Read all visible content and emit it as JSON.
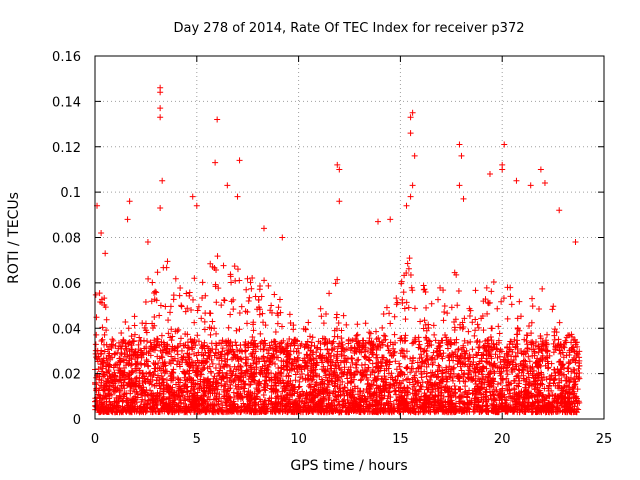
{
  "chart_data": {
    "type": "scatter",
    "title": "Day 278 of 2014, Rate Of TEC Index for receiver p372",
    "xlabel": "GPS time / hours",
    "ylabel": "ROTI / TECUs",
    "xlim": [
      0,
      25
    ],
    "ylim": [
      0,
      0.16
    ],
    "xticks": [
      0,
      5,
      10,
      15,
      20,
      25
    ],
    "xtick_labels": [
      "0",
      "5",
      "10",
      "15",
      "20",
      "25"
    ],
    "yticks": [
      0,
      0.02,
      0.04,
      0.06,
      0.08,
      0.1,
      0.12,
      0.14,
      0.16
    ],
    "ytick_labels": [
      "0",
      "0.02",
      "0.04",
      "0.06",
      "0.08",
      "0.1",
      "0.12",
      "0.14",
      "0.16"
    ],
    "grid": true,
    "marker": "+",
    "series": [
      {
        "name": "ROTI",
        "color": "#ff0000",
        "x_range": [
          0,
          23.8
        ],
        "typical_range": [
          0.003,
          0.035
        ],
        "peaks": [
          {
            "x": 0.1,
            "y": 0.094
          },
          {
            "x": 0.3,
            "y": 0.082
          },
          {
            "x": 0.5,
            "y": 0.073
          },
          {
            "x": 1.7,
            "y": 0.096
          },
          {
            "x": 1.6,
            "y": 0.088
          },
          {
            "x": 2.6,
            "y": 0.078
          },
          {
            "x": 3.2,
            "y": 0.146
          },
          {
            "x": 3.2,
            "y": 0.144
          },
          {
            "x": 3.2,
            "y": 0.137
          },
          {
            "x": 3.2,
            "y": 0.133
          },
          {
            "x": 3.3,
            "y": 0.105
          },
          {
            "x": 3.2,
            "y": 0.093
          },
          {
            "x": 4.8,
            "y": 0.098
          },
          {
            "x": 5.0,
            "y": 0.094
          },
          {
            "x": 6.0,
            "y": 0.132
          },
          {
            "x": 5.9,
            "y": 0.113
          },
          {
            "x": 6.5,
            "y": 0.103
          },
          {
            "x": 7.1,
            "y": 0.114
          },
          {
            "x": 7.0,
            "y": 0.098
          },
          {
            "x": 8.3,
            "y": 0.084
          },
          {
            "x": 9.2,
            "y": 0.08
          },
          {
            "x": 11.9,
            "y": 0.112
          },
          {
            "x": 12.0,
            "y": 0.11
          },
          {
            "x": 12.0,
            "y": 0.096
          },
          {
            "x": 13.9,
            "y": 0.087
          },
          {
            "x": 14.5,
            "y": 0.088
          },
          {
            "x": 15.3,
            "y": 0.094
          },
          {
            "x": 15.6,
            "y": 0.135
          },
          {
            "x": 15.5,
            "y": 0.133
          },
          {
            "x": 15.5,
            "y": 0.126
          },
          {
            "x": 15.7,
            "y": 0.116
          },
          {
            "x": 15.6,
            "y": 0.103
          },
          {
            "x": 15.5,
            "y": 0.098
          },
          {
            "x": 17.9,
            "y": 0.121
          },
          {
            "x": 18.0,
            "y": 0.116
          },
          {
            "x": 17.9,
            "y": 0.103
          },
          {
            "x": 18.1,
            "y": 0.097
          },
          {
            "x": 19.4,
            "y": 0.108
          },
          {
            "x": 20.1,
            "y": 0.121
          },
          {
            "x": 20.0,
            "y": 0.112
          },
          {
            "x": 20.0,
            "y": 0.11
          },
          {
            "x": 20.7,
            "y": 0.105
          },
          {
            "x": 21.4,
            "y": 0.103
          },
          {
            "x": 21.9,
            "y": 0.11
          },
          {
            "x": 22.1,
            "y": 0.104
          },
          {
            "x": 22.8,
            "y": 0.092
          },
          {
            "x": 23.6,
            "y": 0.078
          }
        ]
      }
    ]
  }
}
